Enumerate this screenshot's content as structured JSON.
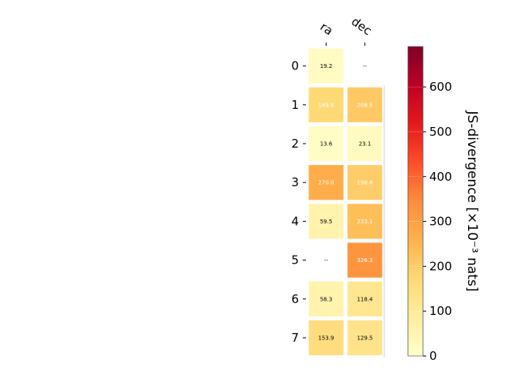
{
  "chart_data": {
    "type": "heatmap",
    "columns": [
      "ra",
      "dec"
    ],
    "rows": [
      "0",
      "1",
      "2",
      "3",
      "4",
      "5",
      "6",
      "7"
    ],
    "values": [
      [
        19.2,
        null
      ],
      [
        169.8,
        208.5
      ],
      [
        13.6,
        23.1
      ],
      [
        270.0,
        198.4
      ],
      [
        59.5,
        233.1
      ],
      [
        null,
        326.3
      ],
      [
        58.3,
        118.4
      ],
      [
        153.9,
        129.5
      ]
    ],
    "cell_labels": [
      [
        "19.2",
        "--"
      ],
      [
        "169.8",
        "208.5"
      ],
      [
        "13.6",
        "23.1"
      ],
      [
        "270.0",
        "198.4"
      ],
      [
        "59.5",
        "233.1"
      ],
      [
        "--",
        "326.3"
      ],
      [
        "58.3",
        "118.4"
      ],
      [
        "153.9",
        "129.5"
      ]
    ],
    "colorbar": {
      "label": "JS-divergence [×10⁻³ nats]",
      "min": 0,
      "max": 690,
      "ticks": [
        0,
        100,
        200,
        300,
        400,
        500,
        600
      ],
      "tick_labels": [
        "0",
        "100",
        "200",
        "300",
        "400",
        "500",
        "600"
      ],
      "colormap": "YlOrRd"
    },
    "grid": false
  }
}
